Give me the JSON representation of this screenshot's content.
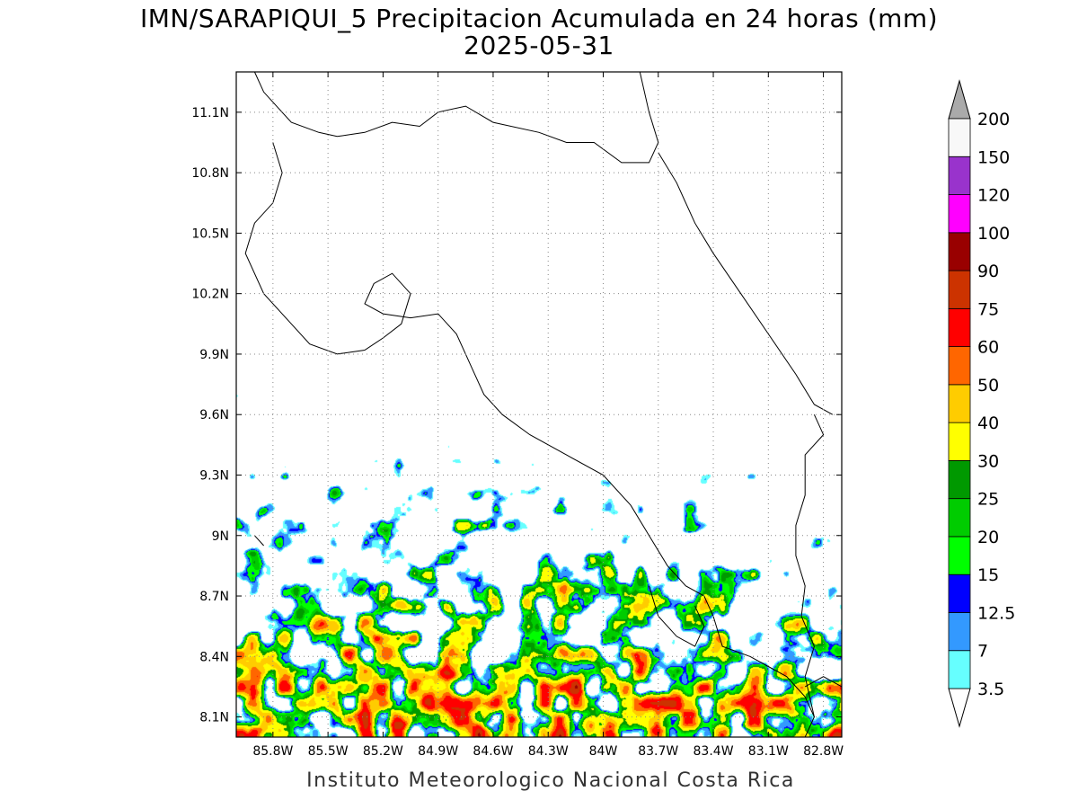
{
  "header": {
    "title": "IMN/SARAPIQUI_5 Precipitacion Acumulada en 24 horas (mm)",
    "date": "2025-05-31"
  },
  "map": {
    "lat_range": [
      8.0,
      11.3
    ],
    "lon_range": [
      -86.0,
      -82.7
    ],
    "lat_ticks": [
      {
        "value": 11.1,
        "label": "11.1N"
      },
      {
        "value": 10.8,
        "label": "10.8N"
      },
      {
        "value": 10.5,
        "label": "10.5N"
      },
      {
        "value": 10.2,
        "label": "10.2N"
      },
      {
        "value": 9.9,
        "label": "9.9N"
      },
      {
        "value": 9.6,
        "label": "9.6N"
      },
      {
        "value": 9.3,
        "label": "9.3N"
      },
      {
        "value": 9.0,
        "label": "9N"
      },
      {
        "value": 8.7,
        "label": "8.7N"
      },
      {
        "value": 8.4,
        "label": "8.4N"
      },
      {
        "value": 8.1,
        "label": "8.1N"
      }
    ],
    "lon_ticks": [
      {
        "value": -85.8,
        "label": "85.8W"
      },
      {
        "value": -85.5,
        "label": "85.5W"
      },
      {
        "value": -85.2,
        "label": "85.2W"
      },
      {
        "value": -84.9,
        "label": "84.9W"
      },
      {
        "value": -84.6,
        "label": "84.6W"
      },
      {
        "value": -84.3,
        "label": "84.3W"
      },
      {
        "value": -84.0,
        "label": "84W"
      },
      {
        "value": -83.7,
        "label": "83.7W"
      },
      {
        "value": -83.4,
        "label": "83.4W"
      },
      {
        "value": -83.1,
        "label": "83.1W"
      },
      {
        "value": -82.8,
        "label": "82.8W"
      }
    ],
    "gridlines": true
  },
  "colorbar": {
    "unit": "mm",
    "levels": [
      {
        "label": "3.5",
        "color": "#66ffff"
      },
      {
        "label": "7",
        "color": "#3399ff"
      },
      {
        "label": "12.5",
        "color": "#0000ff"
      },
      {
        "label": "15",
        "color": "#00ff00"
      },
      {
        "label": "20",
        "color": "#00cc00"
      },
      {
        "label": "25",
        "color": "#009900"
      },
      {
        "label": "30",
        "color": "#ffff00"
      },
      {
        "label": "40",
        "color": "#ffcc00"
      },
      {
        "label": "50",
        "color": "#ff6600"
      },
      {
        "label": "60",
        "color": "#ff0000"
      },
      {
        "label": "75",
        "color": "#cc3300"
      },
      {
        "label": "90",
        "color": "#990000"
      },
      {
        "label": "100",
        "color": "#ff00ff"
      },
      {
        "label": "120",
        "color": "#9933cc"
      },
      {
        "label": "150",
        "color": "#f8f8f8"
      },
      {
        "label": "200",
        "color": "#aaaaaa"
      }
    ]
  },
  "footer": {
    "credit": "Instituto Meteorologico Nacional Costa Rica"
  }
}
